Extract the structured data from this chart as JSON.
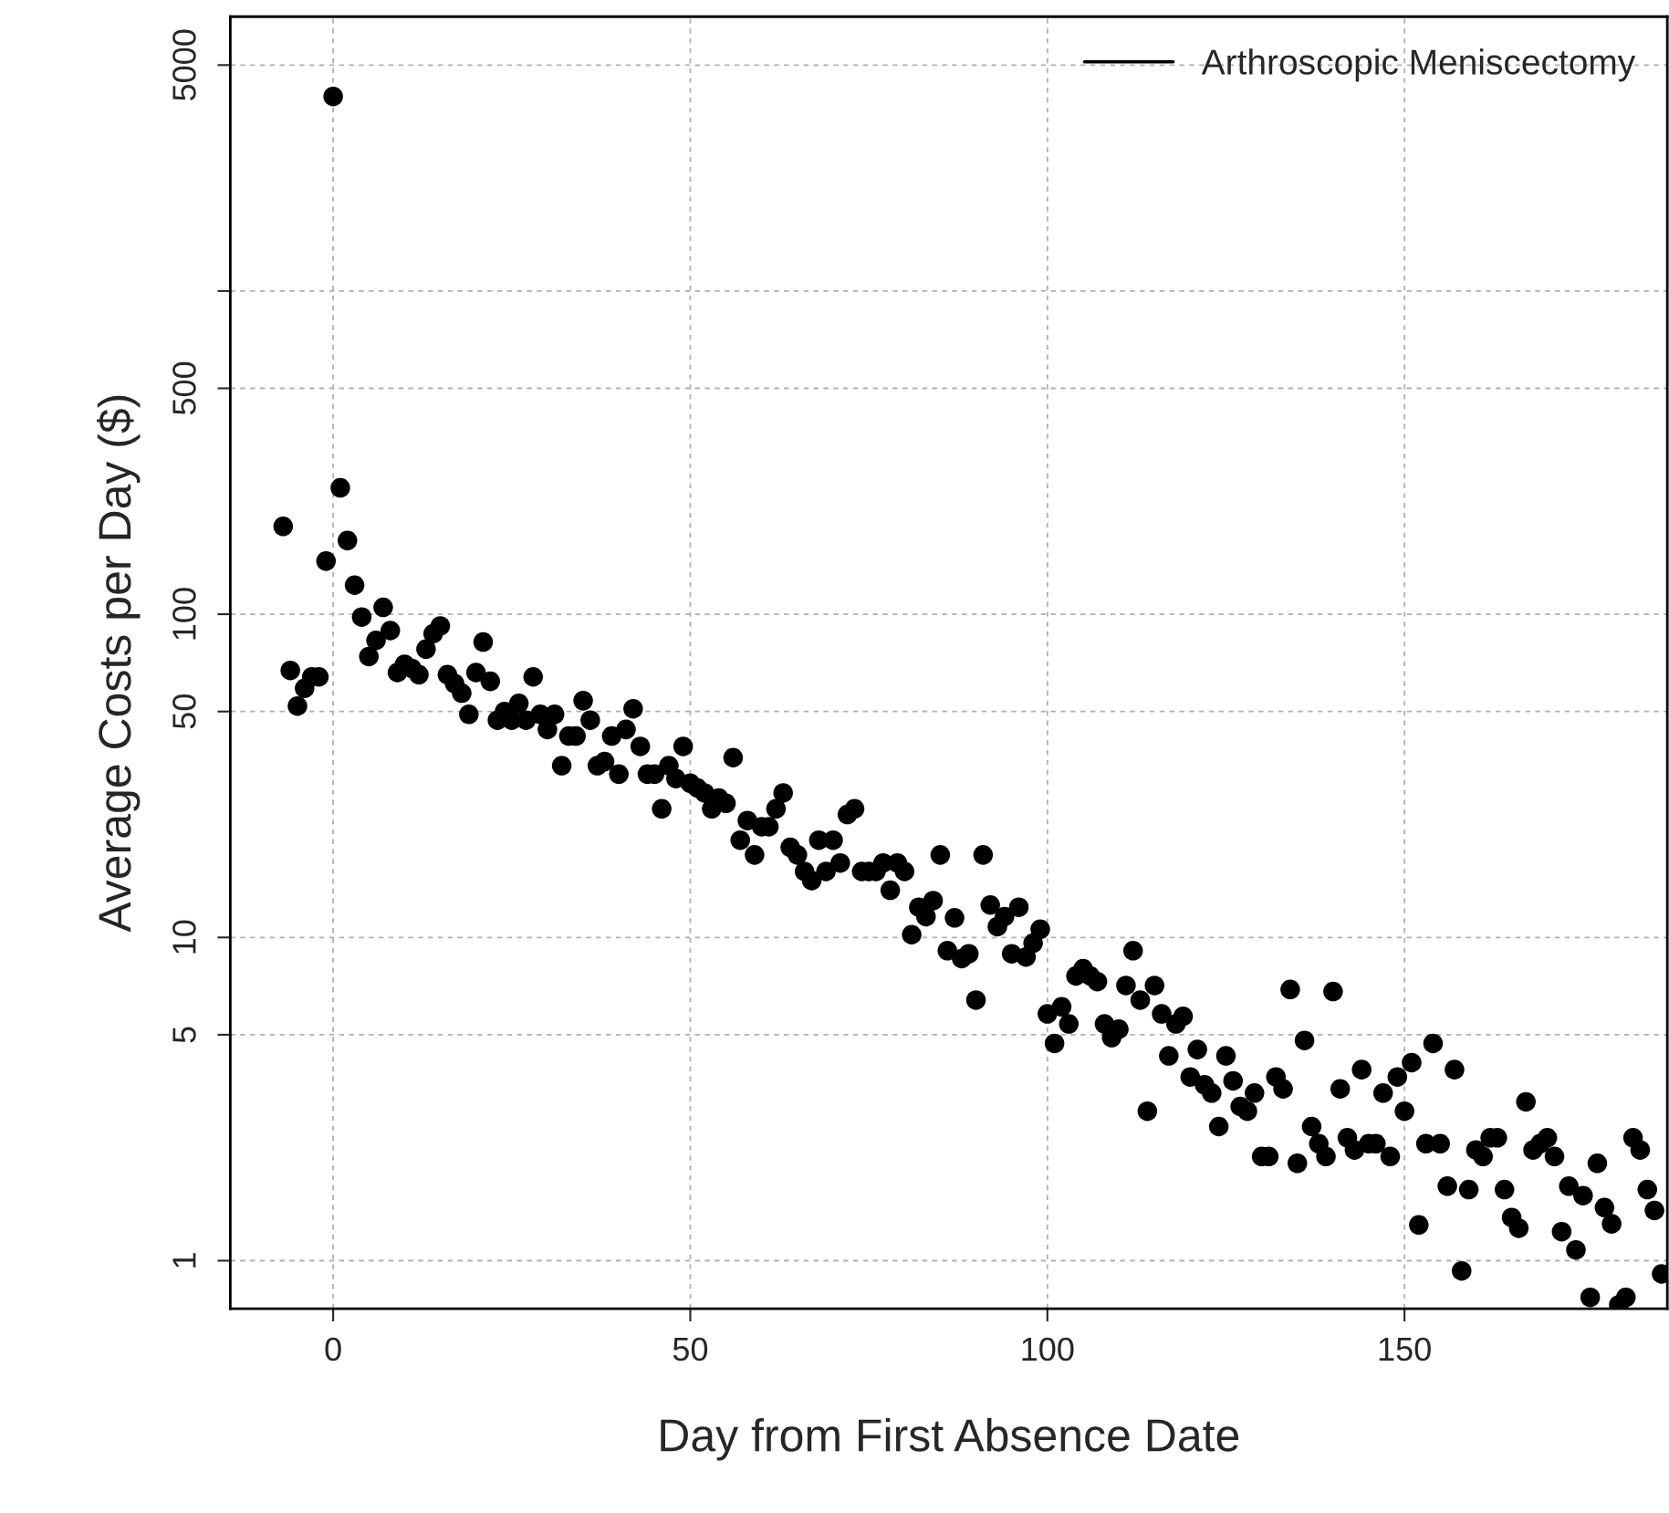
{
  "chart_data": {
    "type": "scatter",
    "xlabel": "Day from First Absence Date",
    "ylabel": "Average Costs per Day ($)",
    "log": "y",
    "grid": true,
    "legend": "top right",
    "marker": "circle",
    "xlim": [
      -14.4,
      186.8
    ],
    "xticks": [
      0,
      50,
      100,
      150
    ],
    "ylim": [
      0.71,
      7060
    ],
    "yticks": [
      1,
      5,
      10,
      50,
      100,
      500,
      {
        "value": 1000,
        "label": null
      },
      5000
    ],
    "series": [
      {
        "name": "Arthroscopic Meniscectomy",
        "color": "#000000",
        "x": [
          -7,
          -6,
          -5,
          -4,
          -3,
          -2,
          -1,
          0,
          1,
          2,
          3,
          4,
          5,
          6,
          7,
          8,
          9,
          10,
          11,
          12,
          13,
          14,
          15,
          16,
          17,
          18,
          19,
          20,
          21,
          22,
          23,
          24,
          25,
          26,
          27,
          28,
          29,
          30,
          31,
          32,
          33,
          34,
          35,
          36,
          37,
          38,
          39,
          40,
          41,
          42,
          43,
          44,
          45,
          46,
          47,
          48,
          49,
          50,
          51,
          52,
          53,
          54,
          55,
          56,
          57,
          58,
          59,
          60,
          61,
          62,
          63,
          64,
          65,
          66,
          67,
          68,
          69,
          70,
          71,
          72,
          73,
          74,
          75,
          76,
          77,
          78,
          79,
          80,
          81,
          82,
          83,
          84,
          85,
          86,
          87,
          88,
          89,
          90,
          91,
          92,
          93,
          94,
          95,
          96,
          97,
          98,
          99,
          100,
          101,
          102,
          103,
          104,
          105,
          106,
          107,
          108,
          109,
          110,
          111,
          112,
          113,
          114,
          115,
          116,
          117,
          118,
          119,
          120,
          121,
          122,
          123,
          124,
          125,
          126,
          127,
          128,
          129,
          130,
          131,
          132,
          133,
          134,
          135,
          136,
          137,
          138,
          139,
          140,
          141,
          142,
          143,
          144,
          145,
          146,
          147,
          148,
          149,
          150,
          151,
          152,
          153,
          154,
          155,
          156,
          157,
          158,
          159,
          160,
          161,
          162,
          163,
          164,
          165,
          166,
          167,
          168,
          169,
          170,
          171,
          172,
          173,
          174,
          175,
          176,
          177,
          178,
          179,
          180,
          181,
          182,
          183,
          184,
          185,
          186
        ],
        "values": [
          187,
          67,
          52,
          59,
          64,
          64,
          146,
          4000,
          246,
          169,
          123,
          98,
          74,
          83,
          105,
          89,
          66,
          70,
          68,
          65,
          78,
          87,
          92,
          65,
          61,
          57,
          49,
          66,
          82,
          62,
          47,
          50,
          47,
          53,
          47,
          64,
          49,
          44,
          49,
          34,
          42,
          42,
          54,
          47,
          34,
          35,
          42,
          32,
          44,
          51,
          39,
          32,
          32,
          25,
          34,
          31,
          39,
          30,
          29,
          28,
          25,
          27,
          26,
          36,
          20,
          23,
          18,
          22,
          22,
          25,
          28,
          19,
          18,
          16,
          15,
          20,
          16,
          20,
          17,
          24,
          25,
          16,
          16,
          16,
          17,
          14,
          17,
          16,
          10.2,
          12.4,
          11.6,
          13,
          18,
          9.1,
          11.5,
          8.6,
          8.9,
          6.4,
          18,
          12.6,
          10.8,
          11.6,
          8.9,
          12.4,
          8.7,
          9.6,
          10.6,
          5.8,
          4.7,
          6.1,
          5.4,
          7.6,
          8.0,
          7.6,
          7.3,
          5.4,
          4.9,
          5.2,
          7.1,
          9.1,
          6.4,
          2.9,
          7.1,
          5.8,
          4.3,
          5.4,
          5.7,
          3.7,
          4.5,
          3.5,
          3.3,
          2.6,
          4.3,
          3.6,
          3.0,
          2.9,
          3.3,
          2.1,
          2.1,
          3.7,
          3.4,
          6.9,
          2.0,
          4.8,
          2.6,
          2.3,
          2.1,
          6.8,
          3.4,
          2.4,
          2.2,
          3.9,
          2.3,
          2.3,
          3.3,
          2.1,
          3.7,
          2.9,
          4.1,
          1.29,
          2.3,
          4.7,
          2.3,
          1.7,
          3.9,
          0.93,
          1.66,
          2.2,
          2.1,
          2.4,
          2.4,
          1.66,
          1.36,
          1.26,
          3.1,
          2.2,
          2.3,
          2.4,
          2.1,
          1.23,
          1.7,
          1.08,
          1.59,
          0.77,
          2.0,
          1.46,
          1.3,
          0.73,
          0.77,
          2.4,
          2.2,
          1.66,
          1.43,
          0.91
        ]
      }
    ]
  }
}
